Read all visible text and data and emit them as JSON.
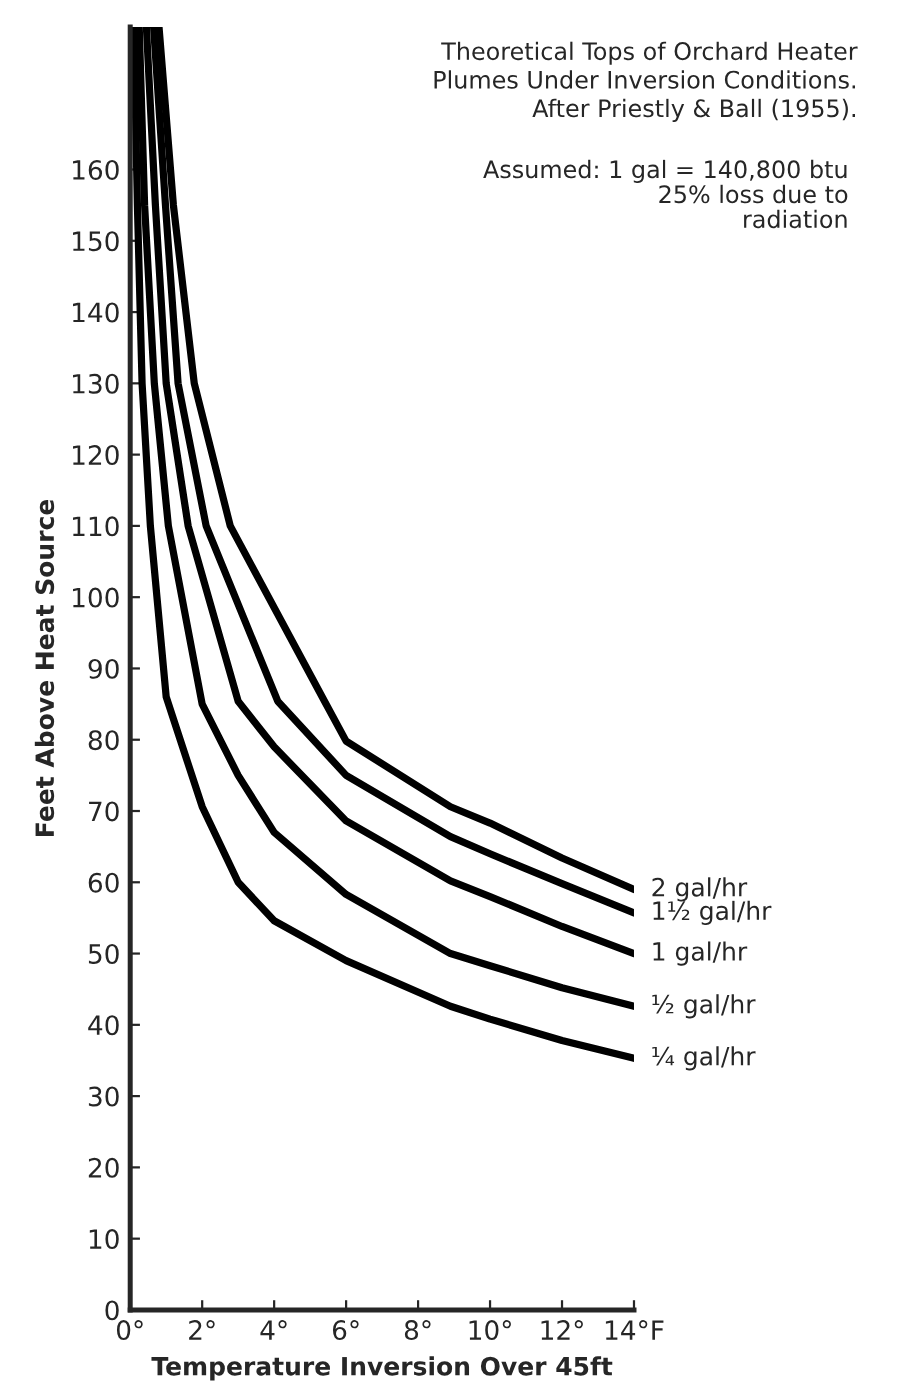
{
  "chart_data": {
    "type": "line",
    "title": "Theoretical Tops of Orchard Heater\nPlumes Under Inversion Conditions.\nAfter Priestly & Ball (1955).",
    "xlabel": "Temperature Inversion Over 45ft",
    "ylabel": "Feet Above Heat Source",
    "annotations": [
      "Assumed: 1 gal = 140,800 btu\n25% loss due to\nradiation"
    ],
    "xlim": [
      0,
      14
    ],
    "ylim": [
      0,
      180
    ],
    "xticks": [
      {
        "value": 0,
        "label": "0°"
      },
      {
        "value": 2,
        "label": "2°"
      },
      {
        "value": 4,
        "label": "4°"
      },
      {
        "value": 6,
        "label": "6°"
      },
      {
        "value": 8,
        "label": "8°"
      },
      {
        "value": 10,
        "label": "10°"
      },
      {
        "value": 12,
        "label": "12°"
      },
      {
        "value": 14,
        "label": "14°F"
      }
    ],
    "yticks": [
      0,
      10,
      20,
      30,
      40,
      50,
      60,
      70,
      80,
      90,
      100,
      110,
      120,
      130,
      140,
      150,
      160
    ],
    "grid": false,
    "legend": false,
    "marker": "none",
    "line_style": "solid",
    "series": [
      {
        "name": "2 gal/hr",
        "color": "#000000",
        "x": [
          0.8,
          1.2,
          1.78,
          2.78,
          5.4,
          6,
          8.9,
          10,
          12,
          14
        ],
        "values": [
          180,
          155,
          130,
          110,
          85.4,
          79.8,
          70.6,
          68.3,
          63.4,
          59
        ]
      },
      {
        "name": "1½ gal/hr",
        "color": "#000000",
        "x": [
          0.65,
          0.98,
          1.33,
          2.11,
          4.1,
          6,
          8.9,
          10,
          12,
          14
        ],
        "values": [
          180,
          155,
          130,
          110,
          85.4,
          75,
          66.4,
          64,
          59.8,
          55.7
        ]
      },
      {
        "name": "1 gal/hr",
        "color": "#000000",
        "x": [
          0.45,
          0.7,
          1.0,
          1.61,
          3.0,
          4,
          6,
          8.9,
          10,
          12,
          14
        ],
        "values": [
          180,
          155,
          130,
          110,
          85.4,
          79,
          68.6,
          60.2,
          58,
          53.8,
          50
        ]
      },
      {
        "name": "½ gal/hr",
        "color": "#000000",
        "x": [
          0.25,
          0.4,
          0.67,
          1.06,
          2,
          3,
          4,
          6,
          8.9,
          10,
          12,
          14
        ],
        "values": [
          180,
          155,
          130,
          110,
          85,
          75,
          67,
          58.3,
          50,
          48.3,
          45.2,
          42.6
        ]
      },
      {
        "name": "¼ gal/hr",
        "color": "#000000",
        "x": [
          0.1,
          0.2,
          0.33,
          0.56,
          1.0,
          2,
          3,
          4,
          6,
          8.9,
          10,
          12,
          14
        ],
        "values": [
          180,
          155,
          130,
          110,
          86,
          70.6,
          60,
          54.6,
          49,
          42.6,
          40.8,
          37.8,
          35.3
        ]
      }
    ]
  }
}
